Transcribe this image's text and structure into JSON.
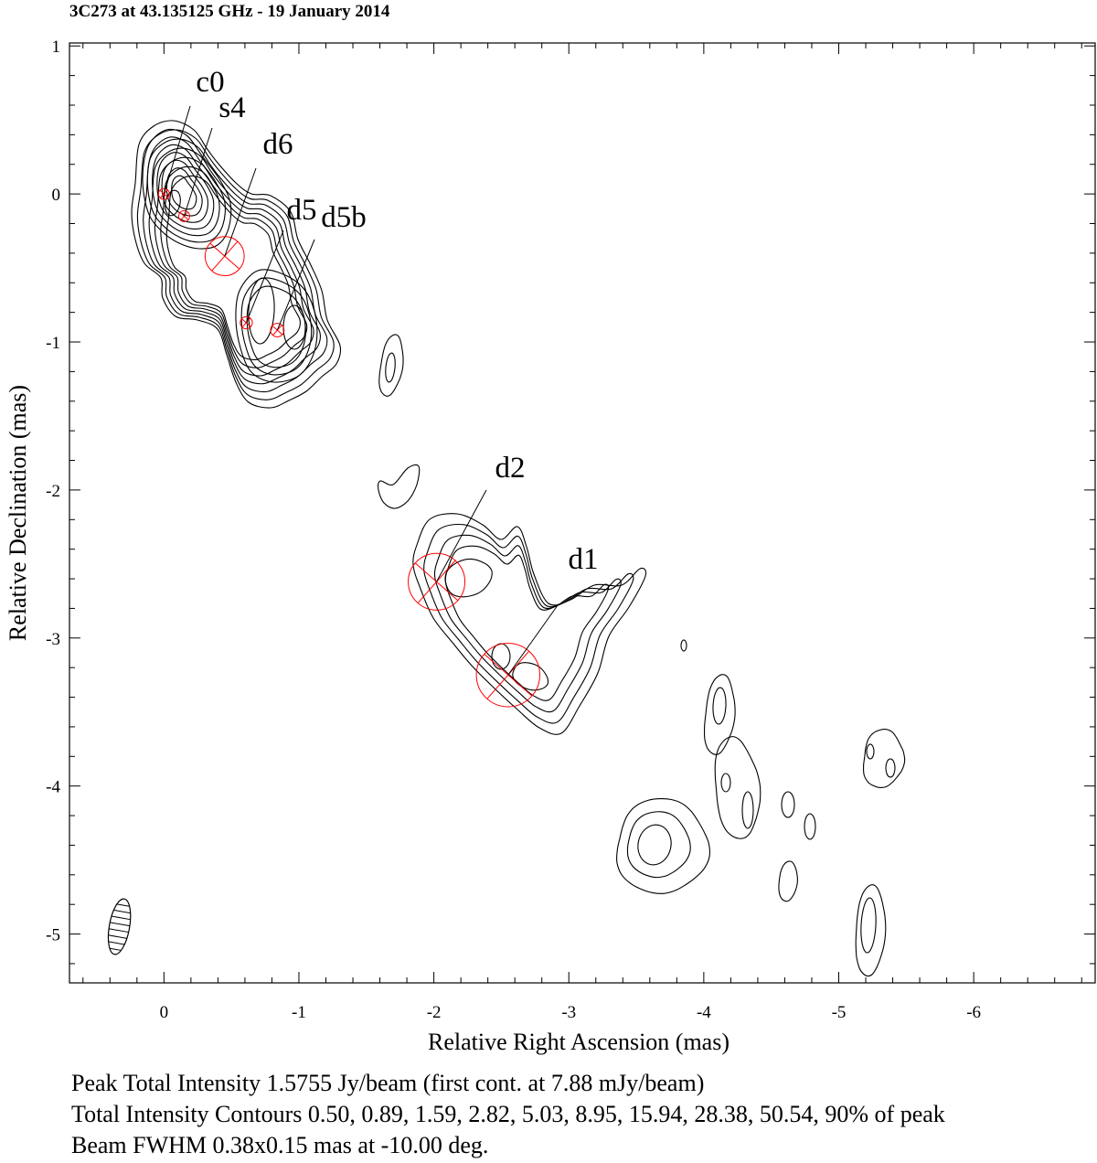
{
  "title": "3C273 at 43.135125 GHz - 19 January 2014",
  "footer": {
    "line1": "Peak Total Intensity 1.5755 Jy/beam (first cont. at 7.88 mJy/beam)",
    "line2": "Total Intensity Contours 0.50, 0.89, 1.59, 2.82, 5.03, 8.95, 15.94, 28.38, 50.54, 90% of peak",
    "line3": "Beam FWHM 0.38x0.15 mas at -10.00 deg."
  },
  "chart_data": {
    "type": "contour",
    "xlabel": "Relative Right Ascension (mas)",
    "ylabel": "Relative Declination (mas)",
    "xlim": [
      0.7,
      -6.9
    ],
    "ylim": [
      -5.33,
      1.02
    ],
    "x_ticks": [
      0,
      -1,
      -2,
      -3,
      -4,
      -5,
      -6
    ],
    "x_tick_labels": [
      "0",
      "-1",
      "-2",
      "-3",
      "-4",
      "-5",
      "-6"
    ],
    "y_ticks": [
      1,
      0,
      -1,
      -2,
      -3,
      -4,
      -5
    ],
    "y_tick_labels": [
      "1",
      "0",
      "-1",
      "-2",
      "-3",
      "-4",
      "-5"
    ],
    "contour_levels_percent": [
      0.5,
      0.89,
      1.59,
      2.82,
      5.03,
      8.95,
      15.94,
      28.38,
      50.54,
      90
    ],
    "components": [
      {
        "name": "c0",
        "x": 0.0,
        "y": 0.0,
        "size": 0.08
      },
      {
        "name": "s4",
        "x": -0.15,
        "y": -0.15,
        "size": 0.07
      },
      {
        "name": "d6",
        "x": -0.45,
        "y": -0.42,
        "size": 0.29
      },
      {
        "name": "d5",
        "x": -0.61,
        "y": -0.87,
        "size": 0.09
      },
      {
        "name": "d5b",
        "x": -0.84,
        "y": -0.92,
        "size": 0.1
      },
      {
        "name": "d2",
        "x": -2.02,
        "y": -2.62,
        "size": 0.42
      },
      {
        "name": "d1",
        "x": -2.55,
        "y": -3.25,
        "size": 0.47
      }
    ],
    "beam": {
      "major_mas": 0.38,
      "minor_mas": 0.15,
      "pa_deg": -10.0,
      "x": 0.33,
      "y": -4.95
    },
    "component_color": "#ff0000",
    "contour_color": "#000000",
    "grid": false
  }
}
